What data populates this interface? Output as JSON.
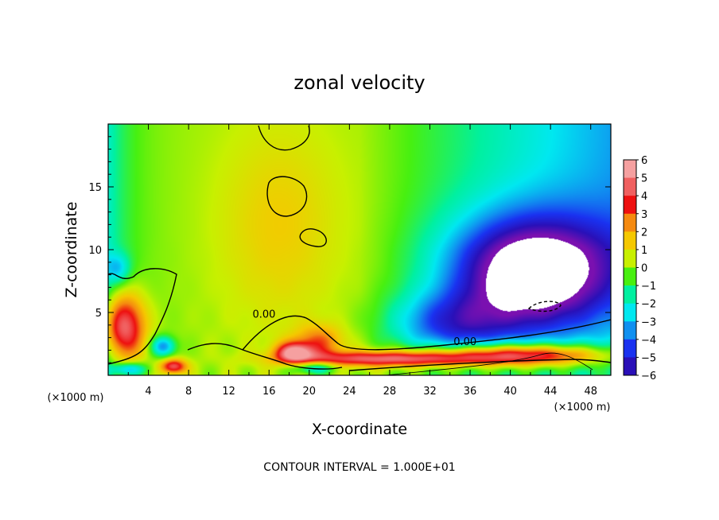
{
  "chart_data": {
    "type": "heatmap",
    "title": "zonal velocity",
    "xlabel": "X-coordinate",
    "ylabel": "Z-coordinate",
    "x_units": "(×1000 m)",
    "x_units_right": "(×1000 m)",
    "xlim": [
      0,
      50
    ],
    "ylim": [
      0,
      20
    ],
    "x_ticks": [
      4,
      8,
      12,
      16,
      20,
      24,
      28,
      32,
      36,
      40,
      44,
      48
    ],
    "x_tick_labels": [
      "4",
      "8",
      "12",
      "16",
      "20",
      "24",
      "28",
      "32",
      "36",
      "40",
      "44",
      "48"
    ],
    "y_ticks": [
      5,
      10,
      15
    ],
    "y_tick_labels": [
      "5",
      "10",
      "15"
    ],
    "colorbar": {
      "levels": [
        6,
        5,
        4,
        3,
        2,
        1,
        0,
        -1,
        -2,
        -3,
        -4,
        -5,
        -6
      ],
      "labels": [
        "6",
        "5",
        "4",
        "3",
        "2",
        "1",
        "0",
        "−1",
        "−2",
        "−3",
        "−4",
        "−5",
        "−6"
      ],
      "colors": [
        "#f5a0a0",
        "#f06060",
        "#ee1010",
        "#f58a10",
        "#f5c800",
        "#c8f000",
        "#48f010",
        "#00f0a0",
        "#00e8f0",
        "#1090f0",
        "#1a32f0",
        "#2a10b8",
        "#7a10b0"
      ]
    },
    "contour_labels": [
      {
        "text": "0.00",
        "x": 15.5,
        "z": 4.6
      },
      {
        "text": "0.00",
        "x": 35.5,
        "z": 2.4
      }
    ],
    "contour_interval": "CONTOUR INTERVAL = 1.000E+01",
    "color_ramp": [
      "#7a10b0",
      "#2a10b8",
      "#1a32f0",
      "#1090f0",
      "#00e8f0",
      "#00f0a0",
      "#48f010",
      "#c8f000",
      "#f5c800",
      "#f58a10",
      "#ee1010",
      "#f06060",
      "#f5a0a0"
    ],
    "value_range": [
      -6,
      6
    ]
  }
}
